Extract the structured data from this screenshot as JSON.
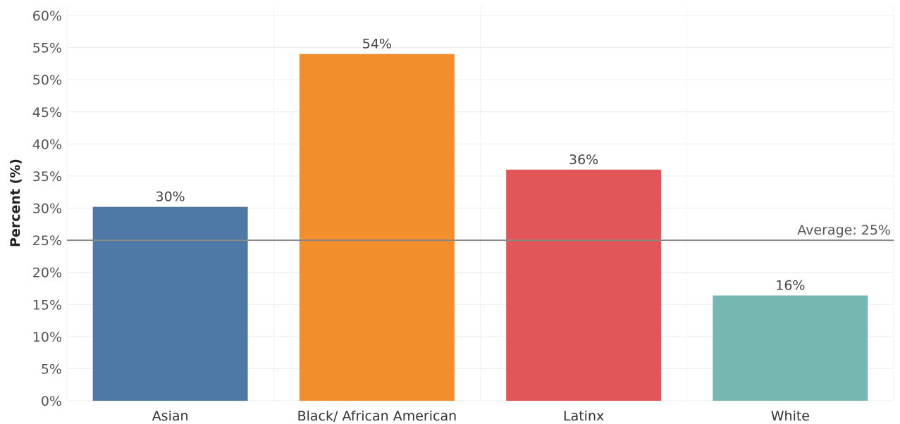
{
  "chart_data": {
    "type": "bar",
    "title": "",
    "xlabel": "",
    "ylabel": "Percent (%)",
    "categories": [
      "Asian",
      "Black/ African American",
      "Latinx",
      "White"
    ],
    "values": [
      30.2,
      54,
      36,
      16.4
    ],
    "value_labels": [
      "30%",
      "54%",
      "36%",
      "16%"
    ],
    "colors": [
      "#4e79a7",
      "#f28e2b",
      "#e15759",
      "#76b7b2"
    ],
    "ylim": [
      0,
      60
    ],
    "yticks": [
      0,
      5,
      10,
      15,
      20,
      25,
      30,
      35,
      40,
      45,
      50,
      55,
      60
    ],
    "ytick_labels": [
      "0%",
      "5%",
      "10%",
      "15%",
      "20%",
      "25%",
      "30%",
      "35%",
      "40%",
      "45%",
      "50%",
      "55%",
      "60%"
    ],
    "grid": true,
    "reference_line": {
      "value": 25,
      "label": "Average: 25%",
      "color": "#888888"
    }
  }
}
